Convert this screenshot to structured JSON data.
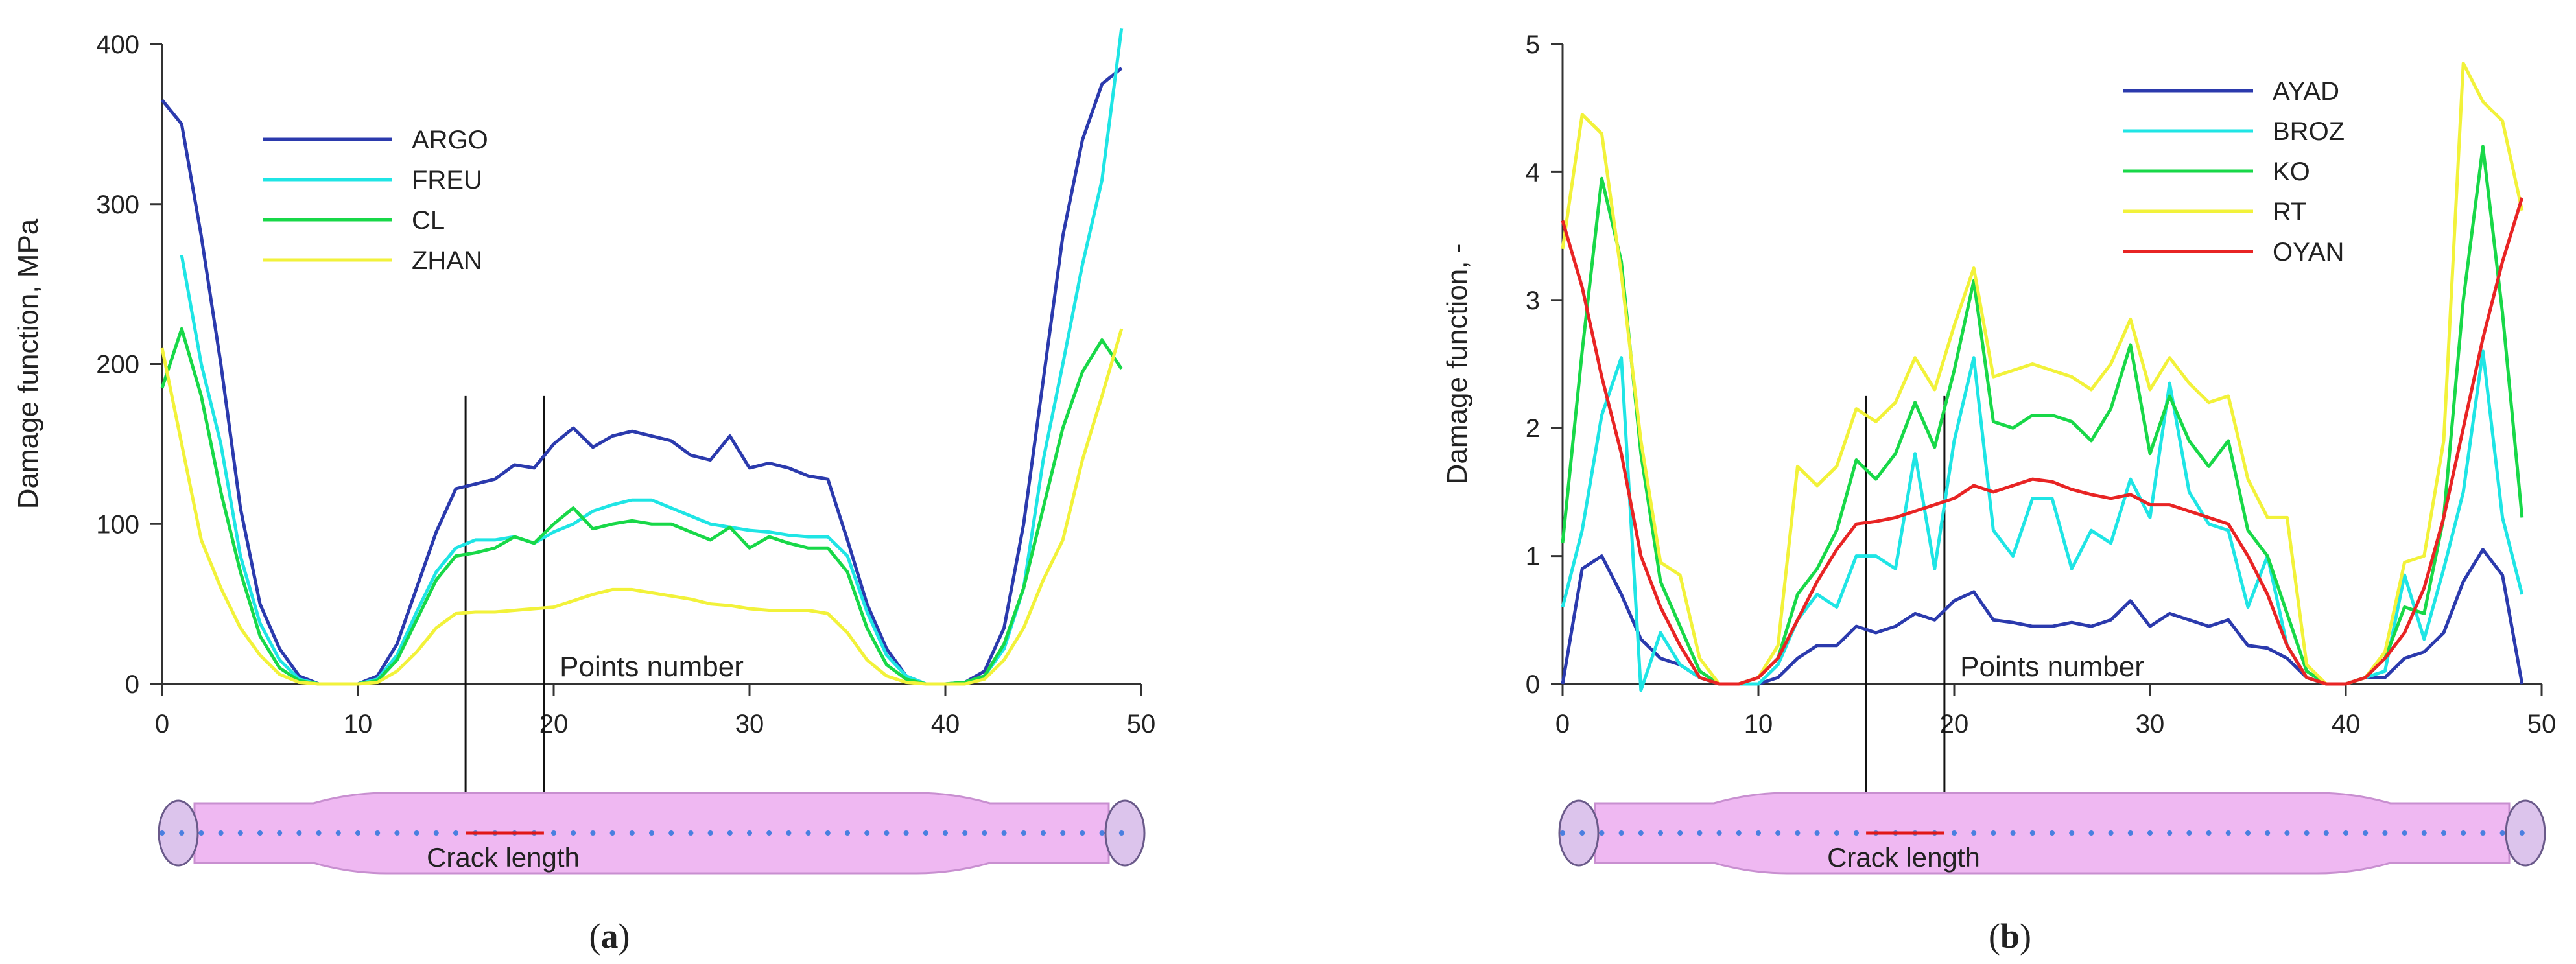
{
  "chart_data": [
    {
      "type": "line",
      "panel_label": "a",
      "ylabel": "Damage function, MPa",
      "xlabel": "Points number",
      "xlim": [
        0,
        50
      ],
      "ylim": [
        0,
        400
      ],
      "xticks": [
        0,
        10,
        20,
        30,
        40,
        50
      ],
      "yticks": [
        0,
        100,
        200,
        300,
        400
      ],
      "crack_annotation": "Crack length",
      "crack_range": [
        15.5,
        19.5
      ],
      "legend_position": "top-left",
      "series": [
        {
          "name": "ARGO",
          "color": "#2b3aad",
          "x": [
            0,
            1,
            2,
            3,
            4,
            5,
            6,
            7,
            8,
            9,
            10,
            11,
            12,
            13,
            14,
            15,
            16,
            17,
            18,
            19,
            20,
            21,
            22,
            23,
            24,
            25,
            26,
            27,
            28,
            29,
            30,
            31,
            32,
            33,
            34,
            35,
            36,
            37,
            38,
            39,
            40,
            41,
            42,
            43,
            44,
            45,
            46,
            47,
            48,
            49
          ],
          "values": [
            365,
            350,
            280,
            200,
            110,
            50,
            22,
            5,
            0,
            0,
            0,
            5,
            25,
            60,
            95,
            122,
            125,
            128,
            137,
            135,
            150,
            160,
            148,
            155,
            158,
            155,
            152,
            143,
            140,
            155,
            135,
            138,
            135,
            130,
            128,
            90,
            50,
            22,
            5,
            0,
            0,
            1,
            8,
            35,
            100,
            190,
            280,
            340,
            375,
            385
          ]
        },
        {
          "name": "FREU",
          "color": "#1fe5e5",
          "x": [
            1,
            2,
            3,
            4,
            5,
            6,
            7,
            8,
            9,
            10,
            11,
            12,
            13,
            14,
            15,
            16,
            17,
            18,
            19,
            20,
            21,
            22,
            23,
            24,
            25,
            26,
            27,
            28,
            29,
            30,
            31,
            32,
            33,
            34,
            35,
            36,
            37,
            38,
            39,
            40,
            41,
            42,
            43,
            44,
            45,
            46,
            47,
            48,
            49
          ],
          "values": [
            268,
            200,
            150,
            80,
            38,
            15,
            3,
            0,
            0,
            0,
            3,
            18,
            45,
            70,
            85,
            90,
            90,
            92,
            88,
            95,
            100,
            108,
            112,
            115,
            115,
            110,
            105,
            100,
            98,
            96,
            95,
            93,
            92,
            92,
            80,
            45,
            18,
            5,
            0,
            0,
            1,
            5,
            22,
            60,
            140,
            200,
            262,
            315,
            410
          ]
        },
        {
          "name": "CL",
          "color": "#18d848",
          "x": [
            0,
            1,
            2,
            3,
            4,
            5,
            6,
            7,
            8,
            9,
            10,
            11,
            12,
            13,
            14,
            15,
            16,
            17,
            18,
            19,
            20,
            21,
            22,
            23,
            24,
            25,
            26,
            27,
            28,
            29,
            30,
            31,
            32,
            33,
            34,
            35,
            36,
            37,
            38,
            39,
            40,
            41,
            42,
            43,
            44,
            45,
            46,
            47,
            48,
            49
          ],
          "values": [
            185,
            222,
            180,
            120,
            70,
            30,
            10,
            2,
            0,
            0,
            0,
            2,
            15,
            40,
            65,
            80,
            82,
            85,
            92,
            88,
            100,
            110,
            97,
            100,
            102,
            100,
            100,
            95,
            90,
            98,
            85,
            92,
            88,
            85,
            85,
            70,
            35,
            12,
            3,
            0,
            0,
            1,
            5,
            25,
            60,
            110,
            160,
            195,
            215,
            197
          ]
        },
        {
          "name": "ZHAN",
          "color": "#f2f23a",
          "x": [
            0,
            1,
            2,
            3,
            4,
            5,
            6,
            7,
            8,
            9,
            10,
            11,
            12,
            13,
            14,
            15,
            16,
            17,
            18,
            19,
            20,
            21,
            22,
            23,
            24,
            25,
            26,
            27,
            28,
            29,
            30,
            31,
            32,
            33,
            34,
            35,
            36,
            37,
            38,
            39,
            40,
            41,
            42,
            43,
            44,
            45,
            46,
            47,
            48,
            49
          ],
          "values": [
            210,
            150,
            90,
            60,
            35,
            18,
            6,
            1,
            0,
            0,
            0,
            1,
            8,
            20,
            35,
            44,
            45,
            45,
            46,
            47,
            48,
            52,
            56,
            59,
            59,
            57,
            55,
            53,
            50,
            49,
            47,
            46,
            46,
            46,
            44,
            32,
            15,
            5,
            1,
            0,
            0,
            0,
            3,
            15,
            35,
            65,
            90,
            140,
            180,
            222
          ]
        }
      ]
    },
    {
      "type": "line",
      "panel_label": "b",
      "ylabel": "Damage function, -",
      "xlabel": "Points number",
      "xlim": [
        0,
        50
      ],
      "ylim": [
        0,
        5
      ],
      "xticks": [
        0,
        10,
        20,
        30,
        40,
        50
      ],
      "yticks": [
        0,
        1,
        2,
        3,
        4,
        5
      ],
      "crack_annotation": "Crack length",
      "crack_range": [
        15.5,
        19.5
      ],
      "legend_position": "top-right",
      "series": [
        {
          "name": "AYAD",
          "color": "#2b3aad",
          "x": [
            0,
            1,
            2,
            3,
            4,
            5,
            6,
            7,
            8,
            9,
            10,
            11,
            12,
            13,
            14,
            15,
            16,
            17,
            18,
            19,
            20,
            21,
            22,
            23,
            24,
            25,
            26,
            27,
            28,
            29,
            30,
            31,
            32,
            33,
            34,
            35,
            36,
            37,
            38,
            39,
            40,
            41,
            42,
            43,
            44,
            45,
            46,
            47,
            48,
            49
          ],
          "values": [
            0,
            0.9,
            1.0,
            0.7,
            0.35,
            0.2,
            0.15,
            0.05,
            0,
            0,
            0,
            0.05,
            0.2,
            0.3,
            0.3,
            0.45,
            0.4,
            0.45,
            0.55,
            0.5,
            0.65,
            0.72,
            0.5,
            0.48,
            0.45,
            0.45,
            0.48,
            0.45,
            0.5,
            0.65,
            0.45,
            0.55,
            0.5,
            0.45,
            0.5,
            0.3,
            0.28,
            0.2,
            0.05,
            0,
            0,
            0.05,
            0.05,
            0.2,
            0.25,
            0.4,
            0.8,
            1.05,
            0.85,
            0
          ]
        },
        {
          "name": "BROZ",
          "color": "#1fe5e5",
          "x": [
            0,
            1,
            2,
            3,
            4,
            5,
            6,
            7,
            8,
            9,
            10,
            11,
            12,
            13,
            14,
            15,
            16,
            17,
            18,
            19,
            20,
            21,
            22,
            23,
            24,
            25,
            26,
            27,
            28,
            29,
            30,
            31,
            32,
            33,
            34,
            35,
            36,
            37,
            38,
            39,
            40,
            41,
            42,
            43,
            44,
            45,
            46,
            47,
            48,
            49
          ],
          "values": [
            0.6,
            1.2,
            2.1,
            2.55,
            -0.05,
            0.4,
            0.15,
            0.05,
            0,
            0,
            0,
            0.15,
            0.5,
            0.7,
            0.6,
            1.0,
            1.0,
            0.9,
            1.8,
            0.9,
            1.9,
            2.55,
            1.2,
            1.0,
            1.45,
            1.45,
            0.9,
            1.2,
            1.1,
            1.6,
            1.3,
            2.35,
            1.5,
            1.25,
            1.2,
            0.6,
            1.0,
            0.3,
            0.05,
            0,
            0,
            0.05,
            0.1,
            0.85,
            0.35,
            0.9,
            1.5,
            2.6,
            1.3,
            0.7
          ]
        },
        {
          "name": "KO",
          "color": "#18d848",
          "x": [
            0,
            1,
            2,
            3,
            4,
            5,
            6,
            7,
            8,
            9,
            10,
            11,
            12,
            13,
            14,
            15,
            16,
            17,
            18,
            19,
            20,
            21,
            22,
            23,
            24,
            25,
            26,
            27,
            28,
            29,
            30,
            31,
            32,
            33,
            34,
            35,
            36,
            37,
            38,
            39,
            40,
            41,
            42,
            43,
            44,
            45,
            46,
            47,
            48,
            49
          ],
          "values": [
            1.1,
            2.6,
            3.95,
            3.3,
            1.8,
            0.8,
            0.45,
            0.1,
            0,
            0,
            0.05,
            0.2,
            0.7,
            0.9,
            1.2,
            1.75,
            1.6,
            1.8,
            2.2,
            1.85,
            2.45,
            3.15,
            2.05,
            2.0,
            2.1,
            2.1,
            2.05,
            1.9,
            2.15,
            2.65,
            1.8,
            2.25,
            1.9,
            1.7,
            1.9,
            1.2,
            1.0,
            0.55,
            0.1,
            0,
            0,
            0.05,
            0.2,
            0.6,
            0.55,
            1.3,
            3.0,
            4.2,
            2.9,
            1.3
          ]
        },
        {
          "name": "RT",
          "color": "#f2f23a",
          "x": [
            0,
            1,
            2,
            3,
            4,
            5,
            6,
            7,
            8,
            9,
            10,
            11,
            12,
            13,
            14,
            15,
            16,
            17,
            18,
            19,
            20,
            21,
            22,
            23,
            24,
            25,
            26,
            27,
            28,
            29,
            30,
            31,
            32,
            33,
            34,
            35,
            36,
            37,
            38,
            39,
            40,
            41,
            42,
            43,
            44,
            45,
            46,
            47,
            48,
            49
          ],
          "values": [
            3.4,
            4.45,
            4.3,
            3.2,
            1.9,
            0.95,
            0.85,
            0.2,
            0,
            0,
            0.05,
            0.3,
            1.7,
            1.55,
            1.7,
            2.15,
            2.05,
            2.2,
            2.55,
            2.3,
            2.8,
            3.25,
            2.4,
            2.45,
            2.5,
            2.45,
            2.4,
            2.3,
            2.5,
            2.85,
            2.3,
            2.55,
            2.35,
            2.2,
            2.25,
            1.6,
            1.3,
            1.3,
            0.15,
            0,
            0,
            0.05,
            0.25,
            0.95,
            1.0,
            1.9,
            4.85,
            4.55,
            4.4,
            3.7
          ]
        },
        {
          "name": "OYAN",
          "color": "#e82424",
          "x": [
            0,
            1,
            2,
            3,
            4,
            5,
            6,
            7,
            8,
            9,
            10,
            11,
            12,
            13,
            14,
            15,
            16,
            17,
            18,
            19,
            20,
            21,
            22,
            23,
            24,
            25,
            26,
            27,
            28,
            29,
            30,
            31,
            32,
            33,
            34,
            35,
            36,
            37,
            38,
            39,
            40,
            41,
            42,
            43,
            44,
            45,
            46,
            47,
            48,
            49
          ],
          "values": [
            3.62,
            3.1,
            2.4,
            1.8,
            1.0,
            0.6,
            0.3,
            0.05,
            0,
            0,
            0.05,
            0.2,
            0.5,
            0.8,
            1.05,
            1.25,
            1.27,
            1.3,
            1.35,
            1.4,
            1.45,
            1.55,
            1.5,
            1.55,
            1.6,
            1.58,
            1.52,
            1.48,
            1.45,
            1.48,
            1.4,
            1.4,
            1.35,
            1.3,
            1.25,
            1.0,
            0.7,
            0.3,
            0.05,
            0,
            0,
            0.05,
            0.2,
            0.4,
            0.75,
            1.3,
            2.0,
            2.7,
            3.3,
            3.8
          ]
        }
      ]
    }
  ]
}
